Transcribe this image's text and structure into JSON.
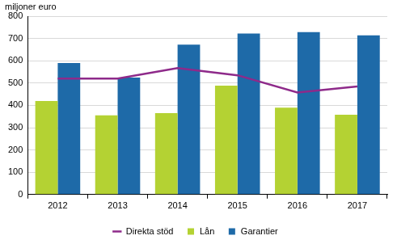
{
  "chart_data": {
    "type": "bar",
    "ylabel": "miljoner euro",
    "categories": [
      "2012",
      "2013",
      "2014",
      "2015",
      "2016",
      "2017"
    ],
    "series": [
      {
        "name": "Lån",
        "color": "#b4d233",
        "values": [
          420,
          355,
          365,
          488,
          390,
          358
        ]
      },
      {
        "name": "Garantier",
        "color": "#1e6aa8",
        "values": [
          590,
          525,
          672,
          722,
          728,
          714
        ]
      },
      {
        "name": "Direkta stöd",
        "type": "line",
        "color": "#8e2a8a",
        "values": [
          520,
          520,
          567,
          535,
          458,
          485
        ]
      }
    ],
    "ylim": [
      0,
      800
    ],
    "yticks": [
      0,
      100,
      200,
      300,
      400,
      500,
      600,
      700,
      800
    ],
    "grid": true,
    "legend": "bottom"
  }
}
